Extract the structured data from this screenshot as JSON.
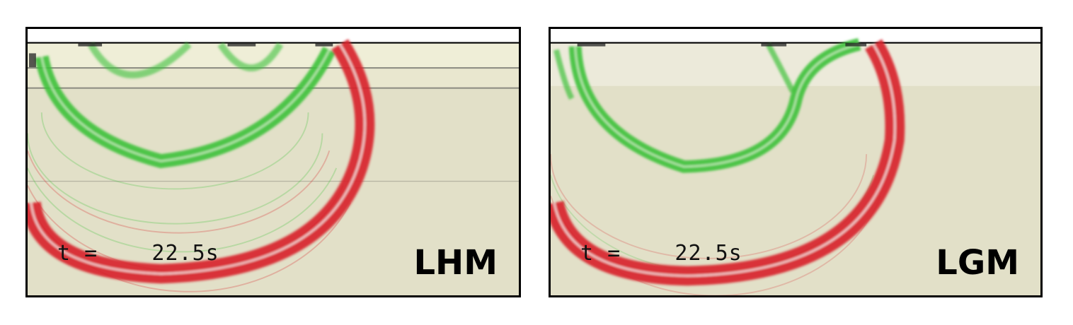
{
  "panels": [
    {
      "model_label": "LHM",
      "time_text": "t =    22.5s"
    },
    {
      "model_label": "LGM",
      "time_text": "t =    22.5s"
    }
  ],
  "colors": {
    "background": "#e2e0c8",
    "upper_layer": "#eeedd6",
    "p_wave": "#d8232a",
    "s_wave": "#3ec23a",
    "border": "#000000"
  }
}
